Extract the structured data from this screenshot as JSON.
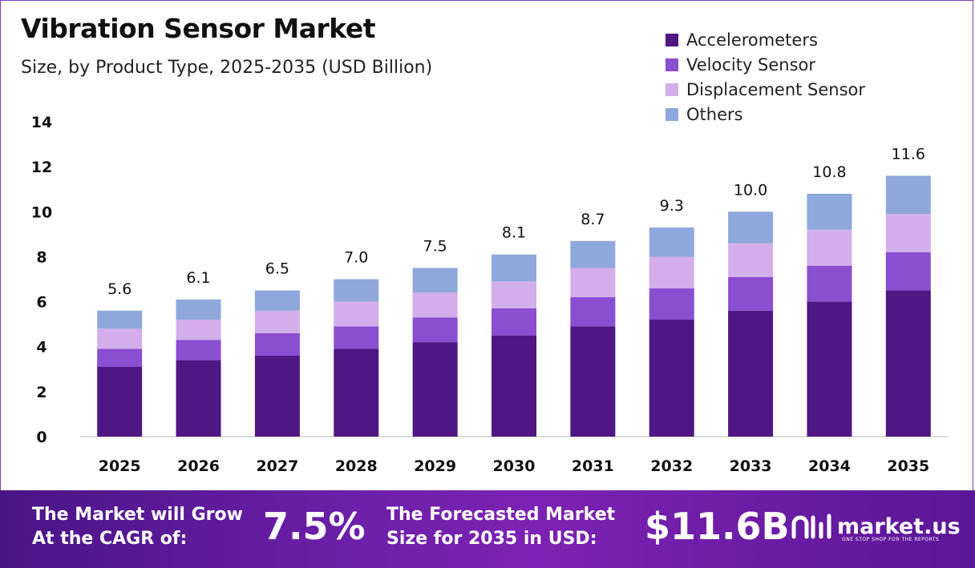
{
  "header": {
    "title": "Vibration Sensor Market",
    "subtitle": "Size, by Product Type, 2025-2035 (USD Billion)"
  },
  "legend": [
    {
      "label": "Accelerometers",
      "color": "#4f1783"
    },
    {
      "label": "Velocity Sensor",
      "color": "#8a4ed1"
    },
    {
      "label": "Displacement Sensor",
      "color": "#d3aeea"
    },
    {
      "label": "Others",
      "color": "#8ea8dc"
    }
  ],
  "chart_data": {
    "type": "bar",
    "stacked": true,
    "title": "Vibration Sensor Market",
    "subtitle": "Size, by Product Type, 2025-2035 (USD Billion)",
    "categories": [
      "2025",
      "2026",
      "2027",
      "2028",
      "2029",
      "2030",
      "2031",
      "2032",
      "2033",
      "2034",
      "2035"
    ],
    "series": [
      {
        "name": "Accelerometers",
        "color": "#4f1783",
        "values": [
          3.1,
          3.4,
          3.6,
          3.9,
          4.2,
          4.5,
          4.9,
          5.2,
          5.6,
          6.0,
          6.5
        ]
      },
      {
        "name": "Velocity Sensor",
        "color": "#8a4ed1",
        "values": [
          0.8,
          0.9,
          1.0,
          1.0,
          1.1,
          1.2,
          1.3,
          1.4,
          1.5,
          1.6,
          1.7
        ]
      },
      {
        "name": "Displacement Sensor",
        "color": "#d3aeea",
        "values": [
          0.9,
          0.9,
          1.0,
          1.1,
          1.1,
          1.2,
          1.3,
          1.4,
          1.5,
          1.6,
          1.7
        ]
      },
      {
        "name": "Others",
        "color": "#8ea8dc",
        "values": [
          0.8,
          0.9,
          0.9,
          1.0,
          1.1,
          1.2,
          1.2,
          1.3,
          1.4,
          1.6,
          1.7
        ]
      }
    ],
    "totals": [
      "5.6",
      "6.1",
      "6.5",
      "7.0",
      "7.5",
      "8.1",
      "8.7",
      "9.3",
      "10.0",
      "10.8",
      "11.6"
    ],
    "ylim": [
      0,
      14
    ],
    "yticks": [
      "0",
      "2",
      "4",
      "6",
      "8",
      "10",
      "12",
      "14"
    ],
    "xlabel": "",
    "ylabel": "",
    "grid": false,
    "legend_position": "top-right"
  },
  "banner": {
    "cagr_text_line1": "The Market will Grow",
    "cagr_text_line2": "At the CAGR of:",
    "cagr_value": "7.5%",
    "forecast_text_line1": "The Forecasted Market",
    "forecast_text_line2": "Size for 2035 in USD:",
    "forecast_value": "$11.6B",
    "logo_text": "market.us",
    "logo_tagline": "ONE STOP SHOP FOR THE REPORTS"
  }
}
